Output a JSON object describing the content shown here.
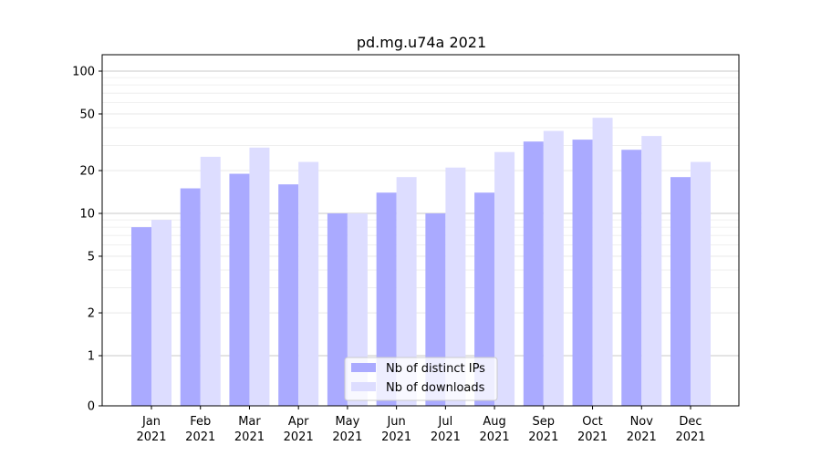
{
  "chart_data": {
    "type": "bar",
    "title": "pd.mg.u74a 2021",
    "xlabel": "",
    "ylabel": "",
    "y_scale": "symlog",
    "y_ticks": [
      0,
      1,
      2,
      5,
      10,
      20,
      50,
      100
    ],
    "ylim": [
      0,
      120
    ],
    "grid": "horizontal",
    "legend_position": "bottom-center",
    "categories": [
      [
        "Jan",
        "2021"
      ],
      [
        "Feb",
        "2021"
      ],
      [
        "Mar",
        "2021"
      ],
      [
        "Apr",
        "2021"
      ],
      [
        "May",
        "2021"
      ],
      [
        "Jun",
        "2021"
      ],
      [
        "Jul",
        "2021"
      ],
      [
        "Aug",
        "2021"
      ],
      [
        "Sep",
        "2021"
      ],
      [
        "Oct",
        "2021"
      ],
      [
        "Nov",
        "2021"
      ],
      [
        "Dec",
        "2021"
      ]
    ],
    "series": [
      {
        "name": "Nb of distinct IPs",
        "color": "#aaaaff",
        "values": [
          8,
          15,
          19,
          16,
          10,
          14,
          10,
          14,
          32,
          33,
          28,
          18
        ]
      },
      {
        "name": "Nb of downloads",
        "color": "#ddddff",
        "values": [
          9,
          25,
          29,
          23,
          10,
          18,
          21,
          27,
          38,
          47,
          35,
          23
        ]
      }
    ]
  }
}
